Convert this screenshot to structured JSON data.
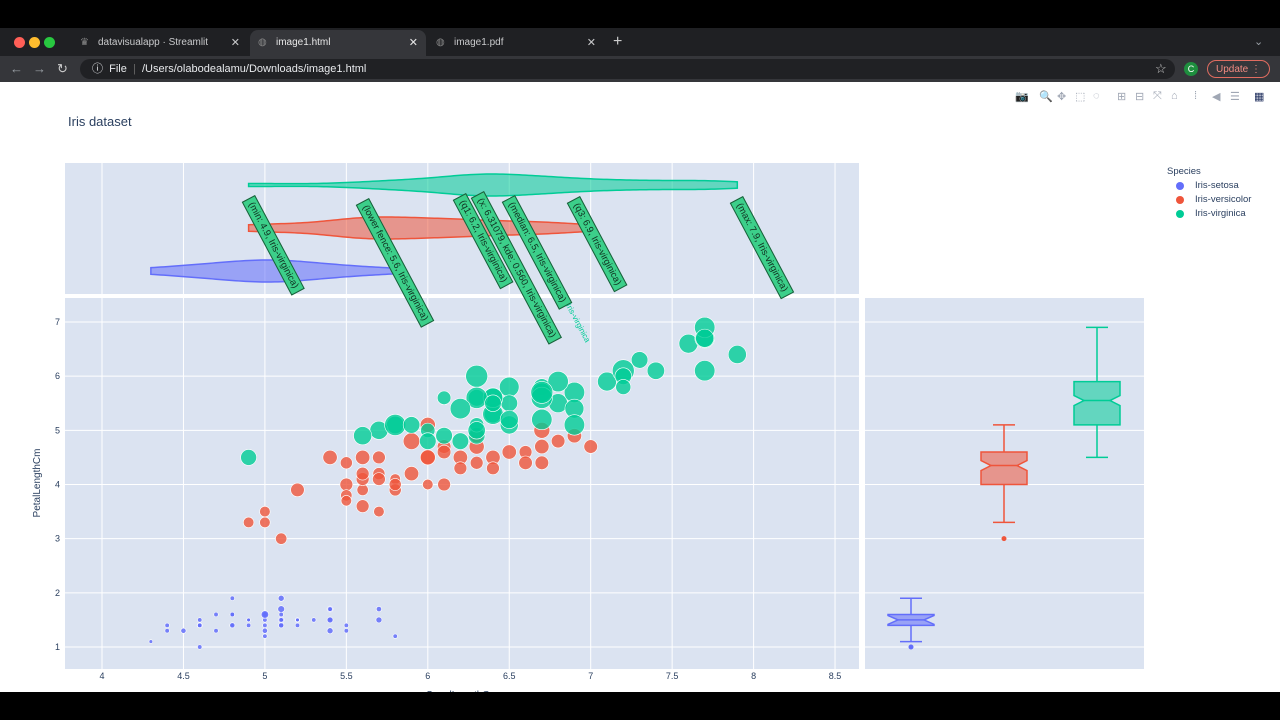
{
  "browser": {
    "tabs": [
      {
        "label": "datavisualapp · Streamlit",
        "active": false
      },
      {
        "label": "image1.html",
        "active": true
      },
      {
        "label": "image1.pdf",
        "active": false
      }
    ],
    "url_scheme": "File",
    "url": "/Users/olabodealamu/Downloads/image1.html",
    "update_label": "Update",
    "profile_initial": "C"
  },
  "toolbar": [
    "camera-icon",
    "zoom-icon",
    "pan-icon",
    "box-select-icon",
    "lasso-icon",
    "zoom-in-icon",
    "zoom-out-icon",
    "autoscale-icon",
    "reset-axes-icon",
    "spike-lines-icon",
    "hover-closest-icon",
    "hover-compare-icon",
    "plotly-logo-icon"
  ],
  "chart_data": {
    "type": "scatter",
    "title": "Iris dataset",
    "xlabel": "SepalLengthCm",
    "ylabel": "PetalLengthCm",
    "xlim": [
      3.77,
      8.65
    ],
    "ylim": [
      0.6,
      7.45
    ],
    "xticks": [
      "4",
      "4.5",
      "5",
      "5.5",
      "6",
      "6.5",
      "7",
      "7.5",
      "8",
      "8.5"
    ],
    "yticks": [
      "1",
      "2",
      "3",
      "4",
      "5",
      "6",
      "7"
    ],
    "size_variable": "PetalWidthCm",
    "legend": {
      "title": "Species",
      "position": "top-right"
    },
    "grid": true,
    "series": [
      {
        "name": "Iris-setosa",
        "color": "#636efa",
        "points": [
          [
            5.1,
            1.4,
            0.2
          ],
          [
            4.9,
            1.4,
            0.2
          ],
          [
            4.7,
            1.3,
            0.2
          ],
          [
            4.6,
            1.5,
            0.2
          ],
          [
            5.0,
            1.4,
            0.2
          ],
          [
            5.4,
            1.7,
            0.4
          ],
          [
            4.6,
            1.4,
            0.3
          ],
          [
            5.0,
            1.5,
            0.2
          ],
          [
            4.4,
            1.4,
            0.2
          ],
          [
            4.9,
            1.5,
            0.1
          ],
          [
            5.4,
            1.5,
            0.2
          ],
          [
            4.8,
            1.6,
            0.2
          ],
          [
            4.8,
            1.4,
            0.1
          ],
          [
            4.3,
            1.1,
            0.1
          ],
          [
            5.8,
            1.2,
            0.2
          ],
          [
            5.7,
            1.5,
            0.4
          ],
          [
            5.4,
            1.3,
            0.4
          ],
          [
            5.1,
            1.4,
            0.3
          ],
          [
            5.7,
            1.7,
            0.3
          ],
          [
            5.1,
            1.5,
            0.3
          ],
          [
            5.4,
            1.7,
            0.2
          ],
          [
            5.1,
            1.5,
            0.4
          ],
          [
            4.6,
            1.0,
            0.2
          ],
          [
            5.1,
            1.7,
            0.5
          ],
          [
            4.8,
            1.9,
            0.2
          ],
          [
            5.0,
            1.6,
            0.2
          ],
          [
            5.0,
            1.6,
            0.4
          ],
          [
            5.2,
            1.5,
            0.2
          ],
          [
            5.2,
            1.4,
            0.2
          ],
          [
            4.7,
            1.6,
            0.2
          ],
          [
            4.8,
            1.6,
            0.2
          ],
          [
            5.4,
            1.5,
            0.4
          ],
          [
            5.2,
            1.5,
            0.1
          ],
          [
            5.5,
            1.4,
            0.2
          ],
          [
            4.9,
            1.5,
            0.1
          ],
          [
            5.0,
            1.2,
            0.2
          ],
          [
            5.5,
            1.3,
            0.2
          ],
          [
            4.4,
            1.3,
            0.2
          ],
          [
            5.1,
            1.5,
            0.2
          ],
          [
            5.0,
            1.3,
            0.3
          ],
          [
            4.5,
            1.3,
            0.3
          ],
          [
            5.0,
            1.6,
            0.6
          ],
          [
            5.1,
            1.9,
            0.4
          ],
          [
            4.8,
            1.4,
            0.3
          ],
          [
            5.1,
            1.6,
            0.2
          ],
          [
            4.6,
            1.4,
            0.2
          ],
          [
            5.3,
            1.5,
            0.2
          ]
        ],
        "box": {
          "min": 1.1,
          "q1": 1.4,
          "median": 1.5,
          "q3": 1.6,
          "max": 1.9,
          "outliers": [
            1.0
          ]
        }
      },
      {
        "name": "Iris-versicolor",
        "color": "#ef553b",
        "points": [
          [
            7.0,
            4.7,
            1.4
          ],
          [
            6.4,
            4.5,
            1.5
          ],
          [
            6.9,
            4.9,
            1.5
          ],
          [
            5.5,
            4.0,
            1.3
          ],
          [
            6.5,
            4.6,
            1.5
          ],
          [
            5.7,
            4.5,
            1.3
          ],
          [
            6.3,
            4.7,
            1.6
          ],
          [
            4.9,
            3.3,
            1.0
          ],
          [
            6.6,
            4.6,
            1.3
          ],
          [
            5.2,
            3.9,
            1.4
          ],
          [
            5.0,
            3.5,
            1.0
          ],
          [
            5.9,
            4.2,
            1.5
          ],
          [
            6.0,
            4.0,
            1.0
          ],
          [
            6.1,
            4.7,
            1.4
          ],
          [
            5.6,
            3.6,
            1.3
          ],
          [
            6.7,
            4.4,
            1.4
          ],
          [
            5.6,
            4.5,
            1.5
          ],
          [
            5.8,
            4.1,
            1.0
          ],
          [
            6.2,
            4.5,
            1.5
          ],
          [
            5.6,
            3.9,
            1.1
          ],
          [
            5.9,
            4.8,
            1.8
          ],
          [
            6.1,
            4.0,
            1.3
          ],
          [
            6.3,
            4.9,
            1.5
          ],
          [
            6.4,
            4.3,
            1.3
          ],
          [
            6.6,
            4.4,
            1.4
          ],
          [
            6.8,
            4.8,
            1.4
          ],
          [
            6.7,
            5.0,
            1.7
          ],
          [
            6.0,
            4.5,
            1.5
          ],
          [
            5.7,
            3.5,
            1.0
          ],
          [
            5.5,
            3.8,
            1.1
          ],
          [
            5.5,
            3.7,
            1.0
          ],
          [
            5.8,
            3.9,
            1.2
          ],
          [
            6.0,
            5.1,
            1.6
          ],
          [
            5.4,
            4.5,
            1.5
          ],
          [
            6.0,
            4.5,
            1.6
          ],
          [
            6.7,
            4.7,
            1.5
          ],
          [
            6.3,
            4.4,
            1.3
          ],
          [
            5.6,
            4.1,
            1.3
          ],
          [
            5.5,
            4.4,
            1.2
          ],
          [
            6.1,
            4.6,
            1.4
          ],
          [
            5.8,
            4.0,
            1.2
          ],
          [
            5.0,
            3.3,
            1.0
          ],
          [
            5.6,
            4.2,
            1.3
          ],
          [
            5.7,
            4.2,
            1.2
          ],
          [
            6.2,
            4.3,
            1.3
          ],
          [
            5.1,
            3.0,
            1.1
          ],
          [
            5.7,
            4.1,
            1.3
          ]
        ],
        "box": {
          "min": 3.3,
          "q1": 4.0,
          "median": 4.35,
          "q3": 4.6,
          "max": 5.1,
          "outliers": [
            3.0
          ]
        }
      },
      {
        "name": "Iris-virginica",
        "color": "#00cc96",
        "points": [
          [
            6.3,
            6.0,
            2.5
          ],
          [
            5.8,
            5.1,
            1.9
          ],
          [
            7.1,
            5.9,
            2.1
          ],
          [
            6.3,
            5.6,
            1.8
          ],
          [
            6.5,
            5.8,
            2.2
          ],
          [
            7.6,
            6.6,
            2.1
          ],
          [
            4.9,
            4.5,
            1.7
          ],
          [
            7.3,
            6.3,
            1.8
          ],
          [
            6.7,
            5.8,
            1.8
          ],
          [
            7.2,
            6.1,
            2.5
          ],
          [
            6.5,
            5.1,
            2.0
          ],
          [
            6.4,
            5.3,
            1.9
          ],
          [
            6.8,
            5.5,
            2.1
          ],
          [
            5.7,
            5.0,
            2.0
          ],
          [
            5.8,
            5.1,
            2.4
          ],
          [
            6.4,
            5.3,
            2.3
          ],
          [
            6.5,
            5.5,
            1.8
          ],
          [
            7.7,
            6.7,
            2.2
          ],
          [
            7.7,
            6.9,
            2.3
          ],
          [
            6.0,
            5.0,
            1.5
          ],
          [
            6.9,
            5.7,
            2.3
          ],
          [
            5.6,
            4.9,
            2.0
          ],
          [
            7.7,
            6.7,
            2.0
          ],
          [
            6.3,
            4.9,
            1.8
          ],
          [
            6.7,
            5.7,
            2.1
          ],
          [
            7.2,
            6.0,
            1.8
          ],
          [
            6.2,
            4.8,
            1.8
          ],
          [
            6.1,
            4.9,
            1.8
          ],
          [
            6.4,
            5.6,
            2.1
          ],
          [
            7.2,
            5.8,
            1.6
          ],
          [
            7.4,
            6.1,
            1.9
          ],
          [
            7.9,
            6.4,
            2.0
          ],
          [
            6.4,
            5.6,
            2.2
          ],
          [
            6.3,
            5.1,
            1.5
          ],
          [
            6.1,
            5.6,
            1.4
          ],
          [
            7.7,
            6.1,
            2.3
          ],
          [
            6.3,
            5.6,
            2.4
          ],
          [
            6.4,
            5.5,
            1.8
          ],
          [
            6.0,
            4.8,
            1.8
          ],
          [
            6.9,
            5.4,
            2.1
          ],
          [
            6.7,
            5.6,
            2.4
          ],
          [
            6.9,
            5.1,
            2.3
          ],
          [
            6.8,
            5.9,
            2.3
          ],
          [
            6.7,
            5.7,
            2.5
          ],
          [
            6.7,
            5.2,
            2.3
          ],
          [
            6.3,
            5.0,
            1.9
          ],
          [
            6.5,
            5.2,
            2.0
          ],
          [
            6.2,
            5.4,
            2.3
          ],
          [
            5.9,
            5.1,
            1.8
          ]
        ],
        "box": {
          "min": 4.5,
          "q1": 5.1,
          "median": 5.55,
          "q3": 5.9,
          "max": 6.9,
          "outliers": []
        }
      }
    ],
    "marginal_x": "violin",
    "marginal_y": "box (notched)",
    "hover_labels": [
      {
        "x": 4.9,
        "text": "(min: 4.9, Iris-virginica)"
      },
      {
        "x": 5.6,
        "text": "(lower fence: 5.6, Iris-virginica)"
      },
      {
        "x": 6.2,
        "text": "(q1: 6.2, Iris-virginica)"
      },
      {
        "x": 6.31,
        "text": "(x: 6.31079, kde: 0.560, Iris-virginica)"
      },
      {
        "x": 6.5,
        "text": "(median: 6.5, Iris-virginica)"
      },
      {
        "x": 6.9,
        "text": "(q3: 6.9, Iris-virginica)"
      },
      {
        "x": 7.9,
        "text": "(max: 7.9, Iris-virginica)"
      }
    ],
    "hover_trace_label": "Iris-virginica"
  }
}
